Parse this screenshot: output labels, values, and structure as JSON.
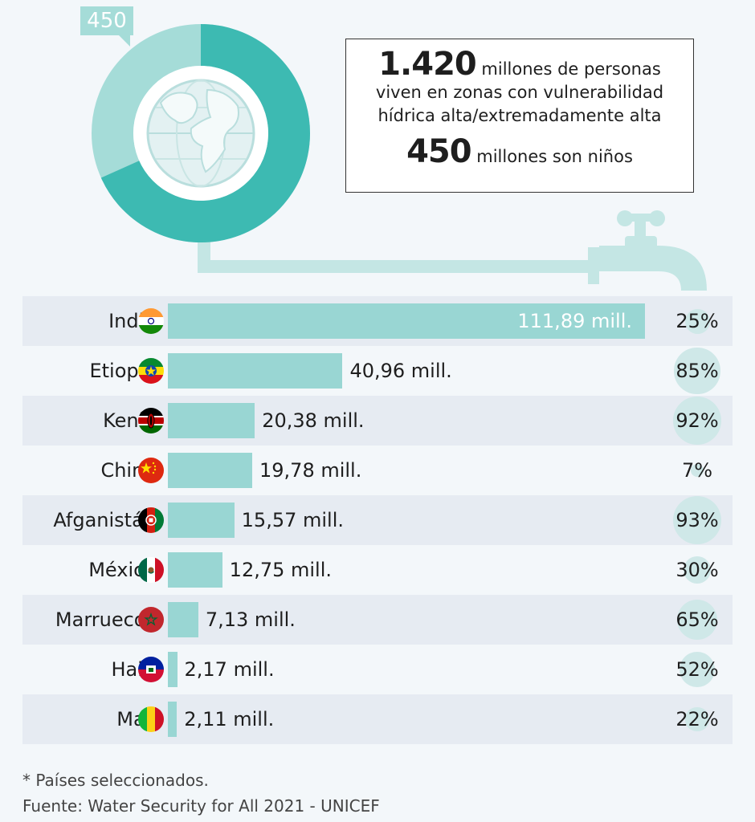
{
  "header": {
    "badge": "450",
    "stat_total": "1.420",
    "stat_line1_rest": " millones de personas",
    "stat_line2": "viven en zonas con vulnerabilidad",
    "stat_line3": "hídrica alta/extremadamente alta",
    "stat_children": "450",
    "stat_line4_rest": " millones son niños"
  },
  "colors": {
    "bar": "#99d6d3",
    "donut_dark": "#3dbab2",
    "donut_light": "#a5dcd8",
    "row_shade": "#e6ebf2",
    "pct_circle": "#cfe8e8"
  },
  "chart_data": {
    "type": "bar",
    "orientation": "horizontal",
    "categories": [
      "India",
      "Etiopía",
      "Kenia",
      "China",
      "Afganistán",
      "México",
      "Marruecos",
      "Haití",
      "Mali"
    ],
    "values": [
      111.89,
      40.96,
      20.38,
      19.78,
      15.57,
      12.75,
      7.13,
      2.17,
      2.11
    ],
    "value_labels": [
      "111,89 mill.",
      "40,96 mill.",
      "20,38 mill.",
      "19,78 mill.",
      "15,57 mill.",
      "12,75 mill.",
      "7,13 mill.",
      "2,17 mill.",
      "2,11 mill."
    ],
    "percentages": [
      25,
      85,
      92,
      7,
      93,
      30,
      65,
      52,
      22
    ],
    "percentage_labels": [
      "25%",
      "85%",
      "92%",
      "7%",
      "93%",
      "30%",
      "65%",
      "52%",
      "22%"
    ],
    "flags": [
      "india-flag",
      "ethiopia-flag",
      "kenya-flag",
      "china-flag",
      "afghanistan-flag",
      "mexico-flag",
      "morocco-flag",
      "haiti-flag",
      "mali-flag"
    ],
    "donut": {
      "total": 1420,
      "children": 450
    }
  },
  "footer": {
    "note": "* Países seleccionados.",
    "source": "Fuente: Water Security for All 2021 - UNICEF"
  }
}
